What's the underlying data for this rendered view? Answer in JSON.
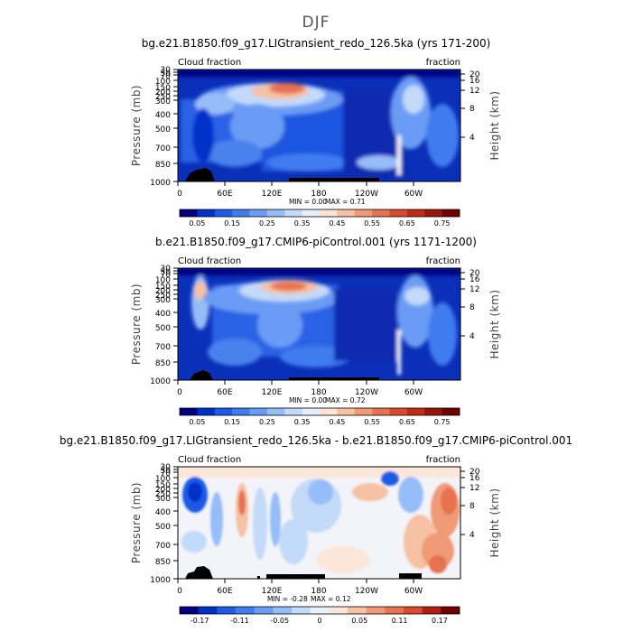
{
  "figure": {
    "title": "DJF"
  },
  "chart_data": [
    {
      "type": "heatmap",
      "title": "bg.e21.B1850.f09_g17.LIGtransient_redo_126.5ka (yrs 171-200)",
      "left_string": "Cloud fraction",
      "right_string": "fraction",
      "ylabel": "Pressure (mb)",
      "ylabel_right": "Height (km)",
      "x_ticks": [
        "0",
        "60E",
        "120E",
        "180",
        "120W",
        "60W"
      ],
      "x_tick_values": [
        0,
        60,
        120,
        180,
        240,
        300
      ],
      "xlim": [
        0,
        360
      ],
      "y_ticks": [
        "30",
        "50",
        "70",
        "100",
        "150",
        "200",
        "250",
        "300",
        "400",
        "500",
        "700",
        "850",
        "1000"
      ],
      "y_tick_values": [
        30,
        50,
        70,
        100,
        150,
        200,
        250,
        300,
        400,
        500,
        700,
        850,
        1000
      ],
      "ylim": [
        1000,
        30
      ],
      "y_scale": "log",
      "y_right_ticks": [
        "20",
        "16",
        "12",
        "8",
        "4"
      ],
      "min_text": "MIN =   0.00",
      "max_text": "MAX =   0.71",
      "min": 0.0,
      "max": 0.71,
      "colorbar_labels": [
        "0.05",
        "0.15",
        "0.25",
        "0.35",
        "0.45",
        "0.55",
        "0.65",
        "0.75"
      ],
      "colorbar_levels": [
        0,
        0.05,
        0.1,
        0.15,
        0.2,
        0.25,
        0.3,
        0.35,
        0.4,
        0.45,
        0.5,
        0.55,
        0.6,
        0.65,
        0.7,
        0.75,
        0.8
      ],
      "colors": [
        "#000080",
        "#0030c8",
        "#1e5ae6",
        "#3f7cf0",
        "#6a9cf5",
        "#97bdf8",
        "#c3daf9",
        "#e5eef9",
        "#fbe3d6",
        "#f7c1a3",
        "#f09a76",
        "#e8714f",
        "#d94a2f",
        "#c02a18",
        "#981408",
        "#6e0000"
      ]
    },
    {
      "type": "heatmap",
      "title": "b.e21.B1850.f09_g17.CMIP6-piControl.001 (yrs 1171-1200)",
      "left_string": "Cloud fraction",
      "right_string": "fraction",
      "ylabel": "Pressure (mb)",
      "ylabel_right": "Height (km)",
      "x_ticks": [
        "0",
        "60E",
        "120E",
        "180",
        "120W",
        "60W"
      ],
      "x_tick_values": [
        0,
        60,
        120,
        180,
        240,
        300
      ],
      "xlim": [
        0,
        360
      ],
      "y_ticks": [
        "30",
        "50",
        "70",
        "100",
        "150",
        "200",
        "250",
        "300",
        "400",
        "500",
        "700",
        "850",
        "1000"
      ],
      "y_tick_values": [
        30,
        50,
        70,
        100,
        150,
        200,
        250,
        300,
        400,
        500,
        700,
        850,
        1000
      ],
      "ylim": [
        1000,
        30
      ],
      "y_scale": "log",
      "y_right_ticks": [
        "20",
        "16",
        "12",
        "8",
        "4"
      ],
      "min_text": "MIN =   0.00",
      "max_text": "MAX =   0.72",
      "min": 0.0,
      "max": 0.72,
      "colorbar_labels": [
        "0.05",
        "0.15",
        "0.25",
        "0.35",
        "0.45",
        "0.55",
        "0.65",
        "0.75"
      ],
      "colorbar_levels": [
        0,
        0.05,
        0.1,
        0.15,
        0.2,
        0.25,
        0.3,
        0.35,
        0.4,
        0.45,
        0.5,
        0.55,
        0.6,
        0.65,
        0.7,
        0.75,
        0.8
      ],
      "colors": [
        "#000080",
        "#0030c8",
        "#1e5ae6",
        "#3f7cf0",
        "#6a9cf5",
        "#97bdf8",
        "#c3daf9",
        "#e5eef9",
        "#fbe3d6",
        "#f7c1a3",
        "#f09a76",
        "#e8714f",
        "#d94a2f",
        "#c02a18",
        "#981408",
        "#6e0000"
      ]
    },
    {
      "type": "heatmap",
      "title": "bg.e21.B1850.f09_g17.LIGtransient_redo_126.5ka - b.e21.B1850.f09_g17.CMIP6-piControl.001",
      "left_string": "Cloud fraction",
      "right_string": "fraction",
      "ylabel": "Pressure (mb)",
      "ylabel_right": "Height (km)",
      "x_ticks": [
        "0",
        "60E",
        "120E",
        "180",
        "120W",
        "60W"
      ],
      "x_tick_values": [
        0,
        60,
        120,
        180,
        240,
        300
      ],
      "xlim": [
        0,
        360
      ],
      "y_ticks": [
        "30",
        "50",
        "70",
        "100",
        "150",
        "200",
        "250",
        "300",
        "400",
        "500",
        "700",
        "850",
        "1000"
      ],
      "y_tick_values": [
        30,
        50,
        70,
        100,
        150,
        200,
        250,
        300,
        400,
        500,
        700,
        850,
        1000
      ],
      "ylim": [
        1000,
        30
      ],
      "y_scale": "log",
      "y_right_ticks": [
        "20",
        "16",
        "12",
        "8",
        "4"
      ],
      "min_text": "MIN = -0.28",
      "max_text": "MAX =   0.12",
      "min": -0.28,
      "max": 0.12,
      "colorbar_labels": [
        "-0.17",
        "-0.11",
        "-0.05",
        "0",
        "0.05",
        "0.11",
        "0.17"
      ],
      "colorbar_levels": [
        -0.2,
        -0.17,
        -0.14,
        -0.11,
        -0.08,
        -0.05,
        -0.02,
        0,
        0.02,
        0.05,
        0.08,
        0.11,
        0.14,
        0.17,
        0.2
      ],
      "colors": [
        "#000080",
        "#0030c8",
        "#1e5ae6",
        "#3f7cf0",
        "#6a9cf5",
        "#97bdf8",
        "#c3daf9",
        "#e8f0fa",
        "#fbe6d9",
        "#f7c1a3",
        "#f09a76",
        "#e8714f",
        "#d94a2f",
        "#b41e0e",
        "#6e0000"
      ]
    }
  ]
}
